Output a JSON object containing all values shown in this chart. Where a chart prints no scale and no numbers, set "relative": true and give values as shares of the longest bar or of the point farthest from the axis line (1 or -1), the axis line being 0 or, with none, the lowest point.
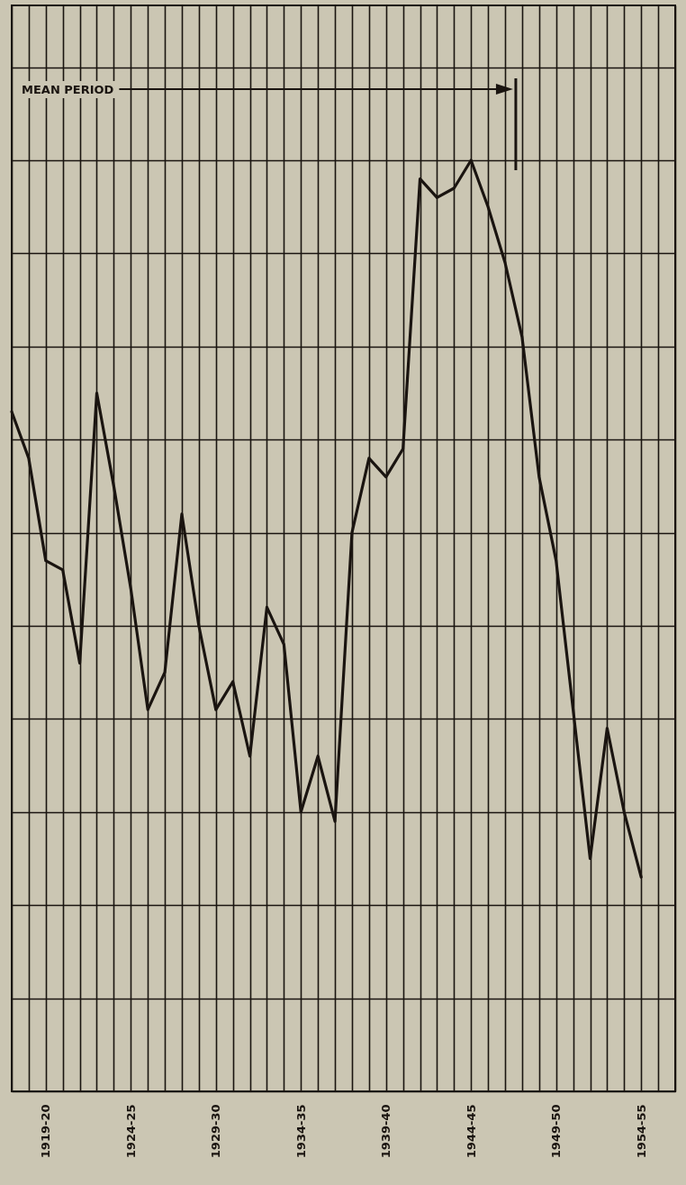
{
  "chart_data": {
    "type": "line",
    "relative": true,
    "grid": true,
    "marker": "none",
    "line_style": "solid",
    "categories": [
      null,
      null,
      "1919-20",
      null,
      null,
      null,
      null,
      "1924-25",
      null,
      null,
      null,
      null,
      "1929-30",
      null,
      null,
      null,
      null,
      "1934-35",
      null,
      null,
      null,
      null,
      "1939-40",
      null,
      null,
      null,
      null,
      "1944-45",
      null,
      null,
      null,
      null,
      "1949-50",
      null,
      null,
      null,
      null,
      "1954-55",
      null,
      null
    ],
    "series": [
      {
        "color": "#1a1410",
        "values": [
          0.73,
          0.68,
          0.57,
          0.56,
          0.46,
          0.75,
          0.65,
          0.54,
          0.41,
          0.45,
          0.62,
          0.5,
          0.41,
          0.44,
          0.36,
          0.52,
          0.48,
          0.3,
          0.36,
          0.29,
          0.6,
          0.68,
          0.66,
          0.69,
          0.98,
          0.96,
          0.97,
          1,
          0.95,
          0.89,
          0.81,
          0.66,
          0.57,
          0.41,
          0.25,
          0.39,
          0.3,
          0.23,
          null,
          null
        ]
      }
    ],
    "annotations": [
      "MEAN PERIOD"
    ]
  }
}
